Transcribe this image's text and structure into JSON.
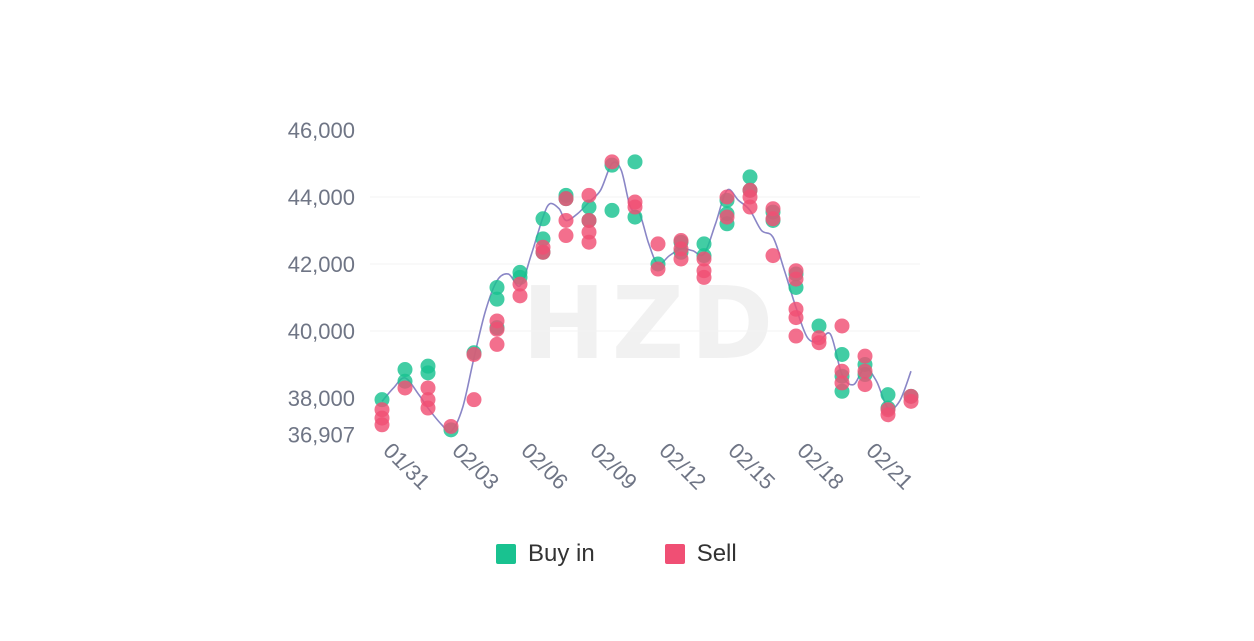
{
  "chart_data": {
    "type": "scatter",
    "watermark": "HZD",
    "y_ticks": [
      "46,000",
      "44,000",
      "42,000",
      "40,000",
      "38,000",
      "36,907"
    ],
    "y_tick_values": [
      46000,
      44000,
      42000,
      40000,
      38000,
      36907
    ],
    "ylim": [
      36907,
      46000
    ],
    "x_ticks": [
      "01/31",
      "02/03",
      "02/06",
      "02/09",
      "02/12",
      "02/15",
      "02/18",
      "02/21"
    ],
    "x_tick_values": [
      0,
      3,
      6,
      9,
      12,
      15,
      18,
      21
    ],
    "xlim": [
      0,
      23.5
    ],
    "legend": [
      {
        "label": "Buy in",
        "color": "#19c290"
      },
      {
        "label": "Sell",
        "color": "#f04f74"
      }
    ],
    "series": [
      {
        "name": "Buy in",
        "color": "#19c290",
        "points": [
          [
            0,
            37950
          ],
          [
            1,
            38850
          ],
          [
            1,
            38500
          ],
          [
            2,
            38950
          ],
          [
            2,
            38750
          ],
          [
            3,
            37050
          ],
          [
            4,
            39350
          ],
          [
            5,
            41300
          ],
          [
            5,
            40950
          ],
          [
            5,
            40100
          ],
          [
            6,
            41750
          ],
          [
            6,
            41600
          ],
          [
            7,
            43350
          ],
          [
            7,
            42750
          ],
          [
            7,
            42350
          ],
          [
            8,
            44050
          ],
          [
            8,
            43950
          ],
          [
            9,
            43700
          ],
          [
            9,
            43300
          ],
          [
            10,
            44950
          ],
          [
            10,
            43600
          ],
          [
            11,
            45050
          ],
          [
            11,
            43400
          ],
          [
            12,
            42000
          ],
          [
            13,
            42650
          ],
          [
            13,
            42350
          ],
          [
            14,
            42600
          ],
          [
            14,
            42250
          ],
          [
            15,
            43900
          ],
          [
            15,
            43500
          ],
          [
            15,
            43200
          ],
          [
            16,
            44600
          ],
          [
            16,
            44200
          ],
          [
            17,
            43550
          ],
          [
            17,
            43300
          ],
          [
            18,
            41700
          ],
          [
            18,
            41300
          ],
          [
            19,
            40150
          ],
          [
            20,
            39300
          ],
          [
            20,
            38650
          ],
          [
            20,
            38200
          ],
          [
            21,
            39000
          ],
          [
            21,
            38700
          ],
          [
            22,
            38100
          ],
          [
            22,
            37700
          ],
          [
            23,
            38050
          ]
        ]
      },
      {
        "name": "Sell",
        "color": "#f04f74",
        "points": [
          [
            0,
            37650
          ],
          [
            0,
            37400
          ],
          [
            0,
            37200
          ],
          [
            1,
            38300
          ],
          [
            2,
            38300
          ],
          [
            2,
            37950
          ],
          [
            2,
            37700
          ],
          [
            3,
            37150
          ],
          [
            4,
            39300
          ],
          [
            4,
            37950
          ],
          [
            5,
            40300
          ],
          [
            5,
            40050
          ],
          [
            5,
            39600
          ],
          [
            6,
            41400
          ],
          [
            6,
            41050
          ],
          [
            7,
            42500
          ],
          [
            7,
            42350
          ],
          [
            8,
            43950
          ],
          [
            8,
            43300
          ],
          [
            8,
            42850
          ],
          [
            9,
            44050
          ],
          [
            9,
            43300
          ],
          [
            9,
            42950
          ],
          [
            9,
            42650
          ],
          [
            10,
            45050
          ],
          [
            11,
            43850
          ],
          [
            11,
            43700
          ],
          [
            12,
            42600
          ],
          [
            12,
            41850
          ],
          [
            13,
            42700
          ],
          [
            13,
            42450
          ],
          [
            13,
            42150
          ],
          [
            14,
            42150
          ],
          [
            14,
            41800
          ],
          [
            14,
            41600
          ],
          [
            15,
            44000
          ],
          [
            15,
            43400
          ],
          [
            16,
            44200
          ],
          [
            16,
            44000
          ],
          [
            16,
            43700
          ],
          [
            17,
            43650
          ],
          [
            17,
            43350
          ],
          [
            17,
            42250
          ],
          [
            18,
            41800
          ],
          [
            18,
            41550
          ],
          [
            18,
            40650
          ],
          [
            18,
            40400
          ],
          [
            18,
            39850
          ],
          [
            19,
            39800
          ],
          [
            19,
            39650
          ],
          [
            20,
            40150
          ],
          [
            20,
            38800
          ],
          [
            20,
            38450
          ],
          [
            21,
            39250
          ],
          [
            21,
            38800
          ],
          [
            21,
            38400
          ],
          [
            22,
            37650
          ],
          [
            22,
            37500
          ],
          [
            23,
            38050
          ],
          [
            23,
            37900
          ]
        ]
      }
    ],
    "trend_line": [
      [
        0,
        37900
      ],
      [
        0.5,
        38300
      ],
      [
        1,
        38600
      ],
      [
        1.6,
        38100
      ],
      [
        2,
        37700
      ],
      [
        2.6,
        37200
      ],
      [
        3,
        37000
      ],
      [
        3.5,
        37700
      ],
      [
        4,
        39200
      ],
      [
        4.5,
        40600
      ],
      [
        5,
        41500
      ],
      [
        5.5,
        41700
      ],
      [
        6,
        41350
      ],
      [
        6.5,
        42300
      ],
      [
        7,
        43400
      ],
      [
        7.3,
        43800
      ],
      [
        7.7,
        43650
      ],
      [
        8,
        43300
      ],
      [
        8.5,
        43500
      ],
      [
        9,
        43850
      ],
      [
        9.5,
        44200
      ],
      [
        10,
        45000
      ],
      [
        10.4,
        44800
      ],
      [
        10.8,
        43700
      ],
      [
        11.2,
        43500
      ],
      [
        11.6,
        42600
      ],
      [
        12,
        42000
      ],
      [
        12.5,
        42250
      ],
      [
        13,
        42450
      ],
      [
        13.5,
        42400
      ],
      [
        14,
        42300
      ],
      [
        14.5,
        43200
      ],
      [
        15,
        44200
      ],
      [
        15.5,
        43900
      ],
      [
        16,
        43600
      ],
      [
        16.5,
        43000
      ],
      [
        17,
        42800
      ],
      [
        17.5,
        41800
      ],
      [
        18,
        40700
      ],
      [
        18.5,
        39800
      ],
      [
        19,
        39700
      ],
      [
        19.5,
        39900
      ],
      [
        20,
        38700
      ],
      [
        20.5,
        38400
      ],
      [
        21,
        38900
      ],
      [
        21.5,
        38500
      ],
      [
        22,
        37700
      ],
      [
        22.5,
        37900
      ],
      [
        23,
        38800
      ]
    ]
  }
}
